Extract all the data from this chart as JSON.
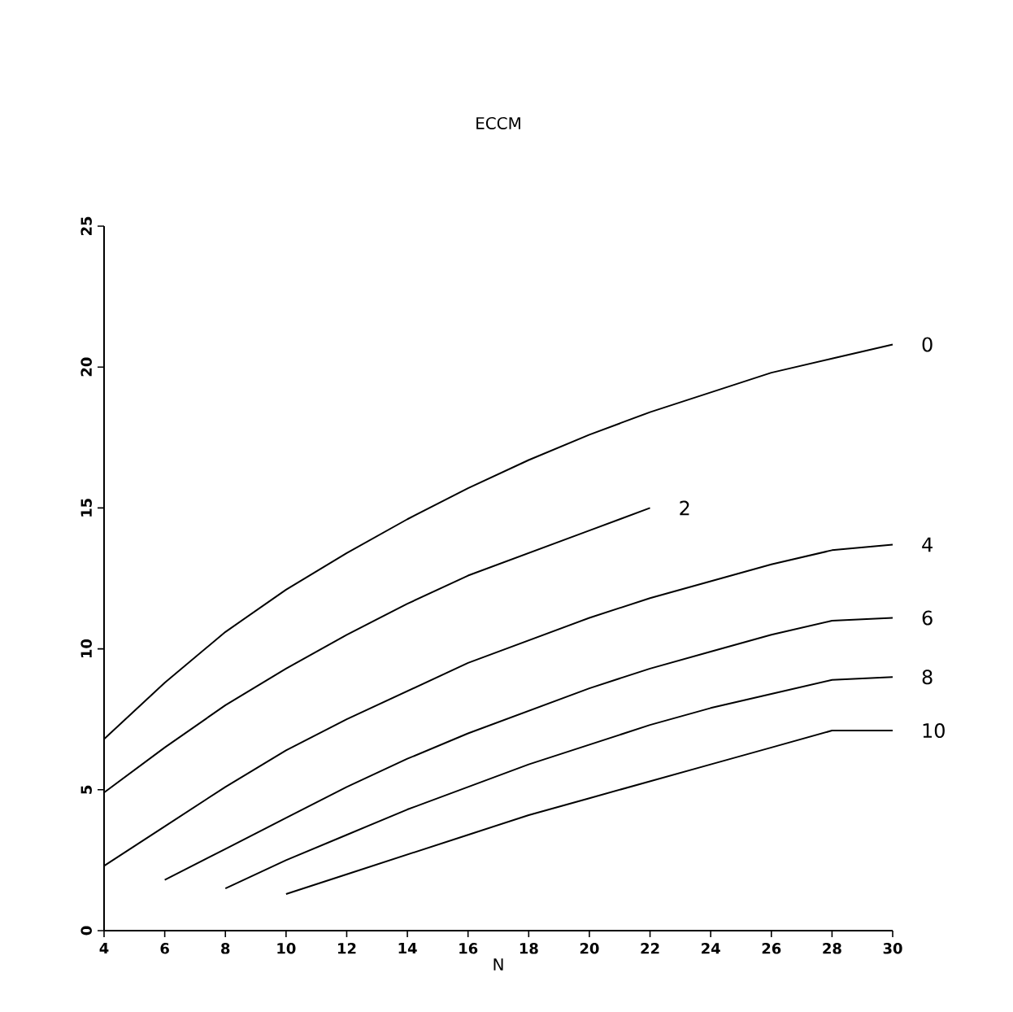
{
  "chart_data": {
    "type": "line",
    "title": "ECCM",
    "xlabel": "N",
    "xlim": [
      4,
      30
    ],
    "ylim": [
      0,
      25
    ],
    "xticks": [
      4,
      6,
      8,
      10,
      12,
      14,
      16,
      18,
      20,
      22,
      24,
      26,
      28,
      30
    ],
    "yticks": [
      0,
      5,
      10,
      15,
      20,
      25
    ],
    "grid": false,
    "legend": false,
    "marker": "none",
    "line_style": "solid",
    "series": [
      {
        "name": "0",
        "color": "#000000",
        "x": [
          4,
          6,
          8,
          10,
          12,
          14,
          16,
          18,
          20,
          22,
          24,
          26,
          28,
          30
        ],
        "values": [
          6.8,
          8.8,
          10.6,
          12.1,
          13.4,
          14.6,
          15.7,
          16.7,
          17.6,
          18.4,
          19.1,
          19.8,
          20.3,
          20.8
        ]
      },
      {
        "name": "2",
        "color": "#000000",
        "x": [
          4,
          6,
          8,
          10,
          12,
          14,
          16,
          18,
          20,
          22
        ],
        "values": [
          4.9,
          6.5,
          8.0,
          9.3,
          10.5,
          11.6,
          12.6,
          13.4,
          14.2,
          15.0
        ]
      },
      {
        "name": "4",
        "color": "#000000",
        "x": [
          4,
          6,
          8,
          10,
          12,
          14,
          16,
          18,
          20,
          22,
          24,
          26,
          28,
          30
        ],
        "values": [
          2.3,
          3.7,
          5.1,
          6.4,
          7.5,
          8.5,
          9.5,
          10.3,
          11.1,
          11.8,
          12.4,
          13.0,
          13.5,
          13.7
        ]
      },
      {
        "name": "6",
        "color": "#000000",
        "x": [
          6,
          8,
          10,
          12,
          14,
          16,
          18,
          20,
          22,
          24,
          26,
          28,
          30
        ],
        "values": [
          1.8,
          2.9,
          4.0,
          5.1,
          6.1,
          7.0,
          7.8,
          8.6,
          9.3,
          9.9,
          10.5,
          11.0,
          11.1
        ]
      },
      {
        "name": "8",
        "color": "#000000",
        "x": [
          8,
          10,
          12,
          14,
          16,
          18,
          20,
          22,
          24,
          26,
          28,
          30
        ],
        "values": [
          1.5,
          2.5,
          3.4,
          4.3,
          5.1,
          5.9,
          6.6,
          7.3,
          7.9,
          8.4,
          8.9,
          9.0
        ]
      },
      {
        "name": "10",
        "color": "#000000",
        "x": [
          10,
          12,
          14,
          16,
          18,
          20,
          22,
          24,
          26,
          28,
          30
        ],
        "values": [
          1.3,
          2.0,
          2.7,
          3.4,
          4.1,
          4.7,
          5.3,
          5.9,
          6.5,
          7.1,
          7.1
        ]
      }
    ]
  }
}
